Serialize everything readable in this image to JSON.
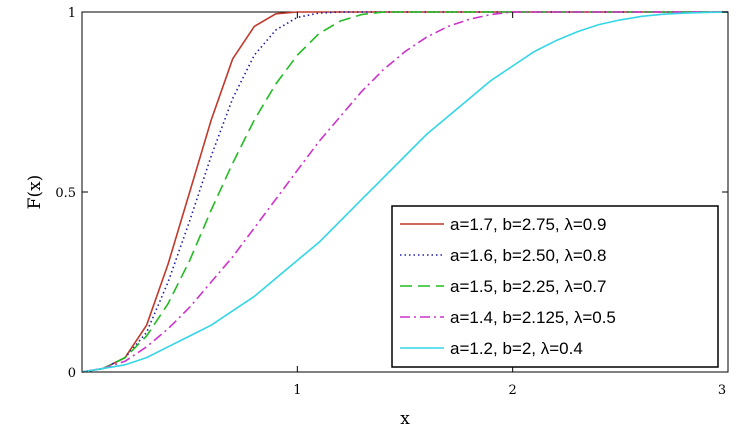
{
  "chart_data": {
    "type": "line",
    "title": "",
    "xlabel": "x",
    "ylabel": "F(x)",
    "xlim": [
      0,
      3
    ],
    "ylim": [
      0,
      1
    ],
    "x_ticks": [
      "1",
      "2",
      "3"
    ],
    "y_ticks": [
      "0",
      "0.5",
      "1"
    ],
    "grid": false,
    "legend_position": "bottom-right",
    "x": [
      0,
      0.1,
      0.2,
      0.3,
      0.4,
      0.5,
      0.6,
      0.7,
      0.8,
      0.9,
      1.0,
      1.1,
      1.2,
      1.3,
      1.4,
      1.5,
      1.6,
      1.7,
      1.8,
      1.9,
      2.0,
      2.1,
      2.2,
      2.3,
      2.4,
      2.5,
      2.6,
      2.7,
      2.8,
      2.9,
      3.0
    ],
    "series": [
      {
        "name": "a=1.7, b=2.75, λ=0.9",
        "color": "#c0392b",
        "dash": "solid",
        "values": [
          0,
          0.01,
          0.04,
          0.13,
          0.3,
          0.5,
          0.7,
          0.87,
          0.96,
          0.995,
          1.0,
          1.0,
          1.0,
          1.0,
          1.0,
          1.0,
          1.0,
          1.0,
          1.0,
          1.0,
          1.0,
          1.0,
          1.0,
          1.0,
          1.0,
          1.0,
          1.0,
          1.0,
          1.0,
          1.0,
          1.0
        ]
      },
      {
        "name": "a=1.6, b=2.50, λ=0.8",
        "color": "#1f1fa8",
        "dash": "dotted",
        "values": [
          0,
          0.01,
          0.04,
          0.11,
          0.25,
          0.42,
          0.6,
          0.76,
          0.88,
          0.95,
          0.985,
          0.997,
          1.0,
          1.0,
          1.0,
          1.0,
          1.0,
          1.0,
          1.0,
          1.0,
          1.0,
          1.0,
          1.0,
          1.0,
          1.0,
          1.0,
          1.0,
          1.0,
          1.0,
          1.0,
          1.0
        ]
      },
      {
        "name": "a=1.5, b=2.25, λ=0.7",
        "color": "#22bb22",
        "dash": "dashed",
        "values": [
          0,
          0.01,
          0.04,
          0.1,
          0.19,
          0.31,
          0.45,
          0.58,
          0.7,
          0.8,
          0.88,
          0.94,
          0.975,
          0.993,
          1.0,
          1.0,
          1.0,
          1.0,
          1.0,
          1.0,
          1.0,
          1.0,
          1.0,
          1.0,
          1.0,
          1.0,
          1.0,
          1.0,
          1.0,
          1.0,
          1.0
        ]
      },
      {
        "name": "a=1.4, b=2.125, λ=0.5",
        "color": "#cc33cc",
        "dash": "dashdot",
        "values": [
          0,
          0.01,
          0.03,
          0.07,
          0.12,
          0.18,
          0.25,
          0.32,
          0.4,
          0.48,
          0.56,
          0.64,
          0.71,
          0.78,
          0.84,
          0.89,
          0.93,
          0.96,
          0.98,
          0.993,
          1.0,
          1.0,
          1.0,
          1.0,
          1.0,
          1.0,
          1.0,
          1.0,
          1.0,
          1.0,
          1.0
        ]
      },
      {
        "name": "a=1.2, b=2, λ=0.4",
        "color": "#33d6e6",
        "dash": "solid",
        "values": [
          0,
          0.01,
          0.02,
          0.04,
          0.07,
          0.1,
          0.13,
          0.17,
          0.21,
          0.26,
          0.31,
          0.36,
          0.42,
          0.48,
          0.54,
          0.6,
          0.66,
          0.71,
          0.76,
          0.81,
          0.85,
          0.89,
          0.92,
          0.945,
          0.965,
          0.978,
          0.988,
          0.994,
          0.997,
          0.999,
          1.0
        ]
      }
    ]
  }
}
